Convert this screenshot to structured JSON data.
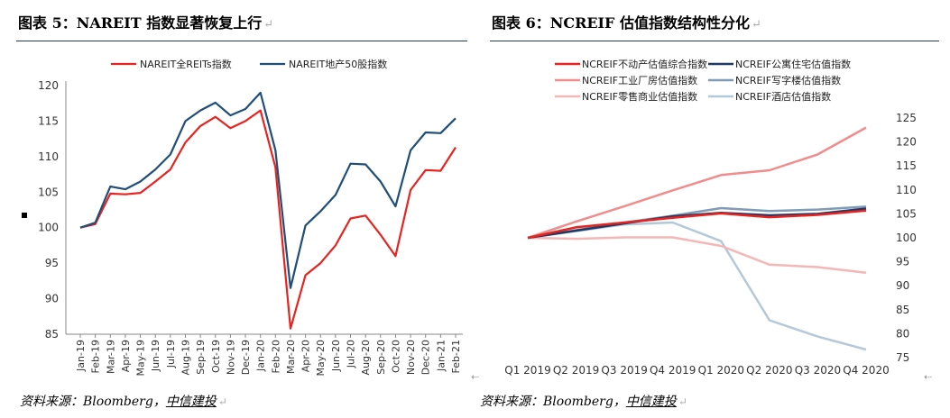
{
  "left": {
    "title": "图表 5：NAREIT 指数显著恢复上行",
    "source": {
      "prefix": "资料来源：Bloomberg，",
      "link": "中信建投"
    }
  },
  "right": {
    "title": "图表 6：NCREIF 估值指数结构性分化",
    "source": {
      "prefix": "资料来源：Bloomberg，",
      "link": "中信建投"
    }
  },
  "chart_data": [
    {
      "type": "line",
      "x": [
        "Jan-19",
        "Feb-19",
        "Mar-19",
        "Apr-19",
        "May-19",
        "Jun-19",
        "Jul-19",
        "Aug-19",
        "Sep-19",
        "Oct-19",
        "Nov-19",
        "Dec-19",
        "Jan-20",
        "Feb-20",
        "Mar-20",
        "Apr-20",
        "May-20",
        "Jun-20",
        "Jul-20",
        "Aug-20",
        "Sep-20",
        "Oct-20",
        "Nov-20",
        "Dec-20",
        "Jan-21",
        "Feb-21"
      ],
      "ylim": [
        85,
        120
      ],
      "yticks": [
        85,
        90,
        95,
        100,
        105,
        110,
        115,
        120
      ],
      "legend": "top",
      "series": [
        {
          "name": "NAREIT全REITs指数",
          "color": "#e8231f",
          "values": [
            100,
            100.5,
            104.8,
            104.7,
            104.9,
            106.5,
            108.2,
            112,
            114.3,
            115.6,
            114,
            115,
            116.5,
            108.5,
            85.8,
            93.3,
            95,
            97.5,
            101.3,
            101.7,
            99,
            96,
            105.3,
            108.1,
            108,
            111.3
          ]
        },
        {
          "name": "NAREIT地产50股指数",
          "color": "#1f4e79",
          "values": [
            100,
            100.7,
            105.8,
            105.4,
            106.5,
            108.2,
            110.3,
            115,
            116.5,
            117.6,
            115.8,
            116.7,
            119,
            110.9,
            91.5,
            100.3,
            102.3,
            104.6,
            109,
            108.9,
            106.5,
            103,
            110.9,
            113.4,
            113.3,
            115.4
          ]
        }
      ]
    },
    {
      "type": "line",
      "x": [
        "Q1 2019",
        "Q2 2019",
        "Q3 2019",
        "Q4 2019",
        "Q1 2020",
        "Q2 2020",
        "Q3 2020",
        "Q4 2020"
      ],
      "ylim": [
        75,
        125
      ],
      "yticks": [
        75,
        80,
        85,
        90,
        95,
        100,
        105,
        110,
        115,
        120,
        125
      ],
      "legend": "top",
      "series": [
        {
          "name": "NCREIF不动产估值综合指数",
          "color": "#e8231f",
          "values": [
            100,
            102.2,
            103.2,
            104.2,
            105.1,
            104.3,
            104.8,
            105.7
          ]
        },
        {
          "name": "NCREIF公寓住宅估值指数",
          "color": "#1f3864",
          "values": [
            100,
            101.5,
            103.0,
            104.5,
            105.2,
            104.7,
            105.0,
            106.1
          ]
        },
        {
          "name": "NCREIF工业厂房估值指数",
          "color": "#f08c8c",
          "values": [
            100,
            103.4,
            106.6,
            109.9,
            113.1,
            114.1,
            117.4,
            123.0
          ]
        },
        {
          "name": "NCREIF写字楼估值指数",
          "color": "#7f9bb5",
          "values": [
            100,
            101.6,
            103.2,
            104.6,
            106.2,
            105.6,
            105.9,
            106.5
          ]
        },
        {
          "name": "NCREIF零售商业估值指数",
          "color": "#f4b6b6",
          "values": [
            100,
            99.8,
            100.1,
            100.1,
            98.3,
            94.4,
            93.9,
            92.7
          ]
        },
        {
          "name": "NCREIF酒店估值指数",
          "color": "#b3c8d8",
          "values": [
            100,
            101.4,
            102.8,
            103.2,
            99.3,
            82.8,
            79.4,
            76.7
          ]
        }
      ]
    }
  ]
}
